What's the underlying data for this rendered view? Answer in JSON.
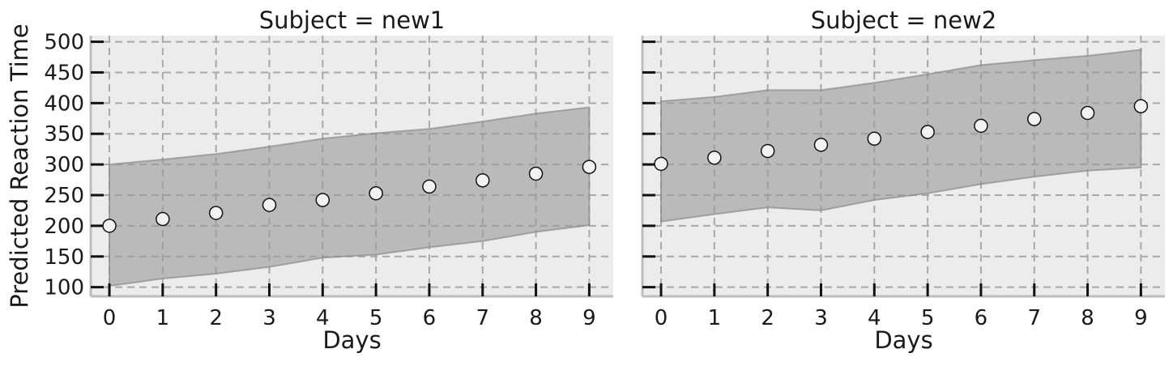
{
  "figure": {
    "ylabel": "Predicted Reaction Time"
  },
  "chart_data": [
    {
      "type": "scatter",
      "title": "Subject = new1",
      "xlabel": "Days",
      "ylabel": "Predicted Reaction Time",
      "x": [
        0,
        1,
        2,
        3,
        4,
        5,
        6,
        7,
        8,
        9
      ],
      "xticks": [
        "0",
        "1",
        "2",
        "3",
        "4",
        "5",
        "6",
        "7",
        "8",
        "9"
      ],
      "yticks": [
        "100",
        "150",
        "200",
        "250",
        "300",
        "350",
        "400",
        "450",
        "500"
      ],
      "ylim": [
        85,
        510
      ],
      "xlim": [
        -0.35,
        9.45
      ],
      "grid": true,
      "series": [
        {
          "values": [
            200,
            211,
            221,
            234,
            242,
            253,
            264,
            274,
            285,
            296
          ]
        }
      ],
      "interval": {
        "lower": [
          102,
          114,
          122,
          133,
          148,
          153,
          165,
          175,
          190,
          201
        ],
        "upper": [
          300,
          308,
          317,
          329,
          342,
          351,
          358,
          370,
          383,
          393
        ]
      },
      "colors": {
        "band": "#999999",
        "marker_fill": "#f2f2f2",
        "marker_edge": "#111111",
        "background": "#ececec",
        "grid": "#a8a8a8"
      }
    },
    {
      "type": "scatter",
      "title": "Subject = new2",
      "xlabel": "Days",
      "x": [
        0,
        1,
        2,
        3,
        4,
        5,
        6,
        7,
        8,
        9
      ],
      "xticks": [
        "0",
        "1",
        "2",
        "3",
        "4",
        "5",
        "6",
        "7",
        "8",
        "9"
      ],
      "ylim": [
        85,
        510
      ],
      "xlim": [
        -0.35,
        9.45
      ],
      "grid": true,
      "series": [
        {
          "values": [
            301,
            311,
            322,
            332,
            342,
            353,
            363,
            374,
            384,
            395
          ]
        }
      ],
      "interval": {
        "lower": [
          207,
          219,
          230,
          225,
          242,
          253,
          268,
          280,
          290,
          295
        ],
        "upper": [
          403,
          410,
          421,
          421,
          433,
          447,
          462,
          470,
          477,
          487
        ]
      },
      "colors": {
        "band": "#999999",
        "marker_fill": "#f2f2f2",
        "marker_edge": "#111111",
        "background": "#ececec",
        "grid": "#a8a8a8"
      }
    }
  ]
}
